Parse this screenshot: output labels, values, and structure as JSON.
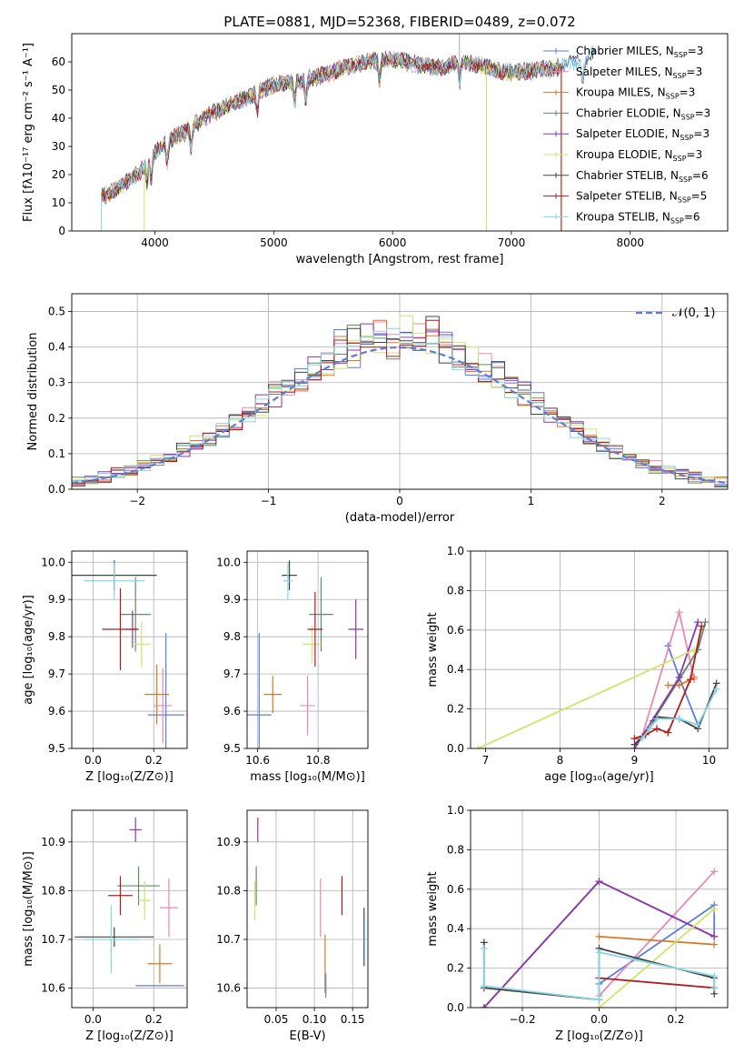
{
  "title": "PLATE=0881, MJD=52368, FIBERID=0489, z=0.072",
  "colors": {
    "Chabrier MILES": "#5b7fd6",
    "Salpeter MILES": "#e889b3",
    "Kroupa MILES": "#d9772b",
    "Chabrier ELODIE": "#5e8c64",
    "Salpeter ELODIE": "#8e35b0",
    "Kroupa ELODIE": "#cfe46a",
    "Chabrier STELIB": "#444444",
    "Salpeter STELIB": "#b01c1c",
    "Kroupa STELIB": "#86d6e6"
  },
  "chart_data": [
    {
      "id": "spectrum",
      "type": "line",
      "xlabel": "wavelength [Angstrom, rest frame]",
      "ylabel": "Flux [fλ10⁻¹⁷ erg cm⁻² s⁻¹ A⁻¹]",
      "xlim": [
        3300,
        8820
      ],
      "ylim": [
        0,
        70
      ],
      "xticks": [
        "4000",
        "5000",
        "6000",
        "7000",
        "8000"
      ],
      "xtick_values": [
        4000,
        5000,
        6000,
        7000,
        8000
      ],
      "yticks": [
        "0",
        "10",
        "20",
        "30",
        "40",
        "50",
        "60"
      ],
      "ytick_values": [
        0,
        10,
        20,
        30,
        40,
        50,
        60
      ],
      "legend_position": "right",
      "legend": [
        {
          "name": "Chabrier MILES",
          "nssp": "3"
        },
        {
          "name": "Salpeter MILES",
          "nssp": "3"
        },
        {
          "name": "Kroupa MILES",
          "nssp": "3"
        },
        {
          "name": "Chabrier ELODIE",
          "nssp": "3"
        },
        {
          "name": "Salpeter ELODIE",
          "nssp": "3"
        },
        {
          "name": "Kroupa ELODIE",
          "nssp": "3"
        },
        {
          "name": "Chabrier STELIB",
          "nssp": "6"
        },
        {
          "name": "Salpeter STELIB",
          "nssp": "5"
        },
        {
          "name": "Kroupa STELIB",
          "nssp": "6"
        }
      ],
      "continuum": [
        [
          3550,
          12
        ],
        [
          3650,
          14
        ],
        [
          3750,
          17
        ],
        [
          3850,
          20
        ],
        [
          3950,
          25
        ],
        [
          4050,
          30
        ],
        [
          4150,
          33
        ],
        [
          4250,
          35
        ],
        [
          4400,
          40
        ],
        [
          4550,
          43
        ],
        [
          4700,
          46
        ],
        [
          4850,
          49
        ],
        [
          5000,
          52
        ],
        [
          5200,
          53
        ],
        [
          5400,
          55
        ],
        [
          5600,
          58
        ],
        [
          5800,
          60
        ],
        [
          6000,
          61
        ],
        [
          6200,
          59
        ],
        [
          6400,
          58
        ],
        [
          6600,
          60
        ],
        [
          6800,
          58
        ],
        [
          7000,
          56
        ],
        [
          7200,
          57
        ],
        [
          7400,
          58
        ],
        [
          7600,
          61
        ],
        [
          7700,
          63
        ]
      ],
      "absorption_lines": [
        3934,
        3969,
        4102,
        4304,
        4861,
        5175,
        5270,
        5890,
        6563,
        7600
      ]
    },
    {
      "id": "residuals",
      "type": "histogram",
      "xlabel": "(data-model)/error",
      "ylabel": "Normed distribution",
      "xlim": [
        -2.5,
        2.5
      ],
      "ylim": [
        0,
        0.55
      ],
      "xticks": [
        "−2",
        "−1",
        "0",
        "1",
        "2"
      ],
      "xtick_values": [
        -2,
        -1,
        0,
        1,
        2
      ],
      "yticks": [
        "0.0",
        "0.1",
        "0.2",
        "0.3",
        "0.4",
        "0.5"
      ],
      "ytick_values": [
        0,
        0.1,
        0.2,
        0.3,
        0.4,
        0.5
      ],
      "reference_label": "𝒩(0, 1)",
      "bin_width": 0.1
    },
    {
      "id": "age-vs-Z",
      "type": "scatter",
      "xlabel": "Z [log₁₀(Z/Z⊙)]",
      "ylabel": "age  [log₁₀(age/yr)]",
      "xlim": [
        -0.07,
        0.31
      ],
      "ylim": [
        9.5,
        10.03
      ],
      "xticks": [
        "0.0",
        "0.2"
      ],
      "xtick_values": [
        0.0,
        0.2
      ],
      "yticks": [
        "9.5",
        "9.6",
        "9.7",
        "9.8",
        "9.9",
        "10.0"
      ],
      "ytick_values": [
        9.5,
        9.6,
        9.7,
        9.8,
        9.9,
        10.0
      ],
      "points": [
        {
          "series": "Chabrier MILES",
          "x": 0.24,
          "xerr": 0.06,
          "y": 9.59,
          "yerr": 0.22
        },
        {
          "series": "Salpeter MILES",
          "x": 0.23,
          "xerr": 0.03,
          "y": 9.615,
          "yerr": 0.1
        },
        {
          "series": "Kroupa MILES",
          "x": 0.21,
          "xerr": 0.04,
          "y": 9.645,
          "yerr": 0.08
        },
        {
          "series": "Chabrier ELODIE",
          "x": 0.14,
          "xerr": 0.05,
          "y": 9.86,
          "yerr": 0.1
        },
        {
          "series": "Salpeter ELODIE",
          "x": 0.13,
          "xerr": 0.02,
          "y": 9.82,
          "yerr": 0.05
        },
        {
          "series": "Kroupa ELODIE",
          "x": 0.16,
          "xerr": 0.03,
          "y": 9.78,
          "yerr": 0.06
        },
        {
          "series": "Chabrier STELIB",
          "x": 0.07,
          "xerr": 0.14,
          "y": 9.965,
          "yerr": 0.04
        },
        {
          "series": "Salpeter STELIB",
          "x": 0.09,
          "xerr": 0.06,
          "y": 9.82,
          "yerr": 0.11
        },
        {
          "series": "Kroupa STELIB",
          "x": 0.07,
          "xerr": 0.1,
          "y": 9.95,
          "yerr": 0.05
        }
      ]
    },
    {
      "id": "age-vs-mass",
      "type": "scatter",
      "xlabel": "mass [log₁₀(M/M⊙)]",
      "ylabel": "",
      "xlim": [
        10.565,
        10.965
      ],
      "ylim": [
        9.5,
        10.03
      ],
      "xticks": [
        "10.6",
        "10.8"
      ],
      "xtick_values": [
        10.6,
        10.8
      ],
      "yticks": [
        "9.5",
        "9.6",
        "9.7",
        "9.8",
        "9.9",
        "10.0"
      ],
      "ytick_values": [
        9.5,
        9.6,
        9.7,
        9.8,
        9.9,
        10.0
      ],
      "points": [
        {
          "series": "Chabrier MILES",
          "x": 10.605,
          "xerr": 0.04,
          "y": 9.59,
          "yerr": 0.22
        },
        {
          "series": "Salpeter MILES",
          "x": 10.765,
          "xerr": 0.025,
          "y": 9.615,
          "yerr": 0.08
        },
        {
          "series": "Kroupa MILES",
          "x": 10.65,
          "xerr": 0.03,
          "y": 9.645,
          "yerr": 0.05
        },
        {
          "series": "Chabrier ELODIE",
          "x": 10.81,
          "xerr": 0.04,
          "y": 9.86,
          "yerr": 0.1
        },
        {
          "series": "Salpeter ELODIE",
          "x": 10.925,
          "xerr": 0.025,
          "y": 9.82,
          "yerr": 0.08
        },
        {
          "series": "Kroupa ELODIE",
          "x": 10.78,
          "xerr": 0.03,
          "y": 9.78,
          "yerr": 0.05
        },
        {
          "series": "Chabrier STELIB",
          "x": 10.705,
          "xerr": 0.025,
          "y": 9.965,
          "yerr": 0.04
        },
        {
          "series": "Salpeter STELIB",
          "x": 10.79,
          "xerr": 0.025,
          "y": 9.82,
          "yerr": 0.1
        },
        {
          "series": "Kroupa STELIB",
          "x": 10.7,
          "xerr": 0.015,
          "y": 9.95,
          "yerr": 0.05
        }
      ]
    },
    {
      "id": "weight-vs-age",
      "type": "line",
      "xlabel": "age  [log₁₀(age/yr)]",
      "ylabel": "mass weight",
      "xlim": [
        6.8,
        10.25
      ],
      "ylim": [
        0,
        1
      ],
      "xticks": [
        "7",
        "8",
        "9",
        "10"
      ],
      "xtick_values": [
        7,
        8,
        9,
        10
      ],
      "yticks": [
        "0.0",
        "0.2",
        "0.4",
        "0.6",
        "0.8",
        "1.0"
      ],
      "ytick_values": [
        0,
        0.2,
        0.4,
        0.6,
        0.8,
        1.0
      ],
      "series": [
        {
          "series": "Chabrier MILES",
          "points": [
            [
              9.45,
              0.52
            ],
            [
              9.6,
              0.36
            ],
            [
              9.85,
              0.12
            ]
          ]
        },
        {
          "series": "Salpeter MILES",
          "points": [
            [
              9.1,
              0.06
            ],
            [
              9.6,
              0.69
            ],
            [
              9.8,
              0.35
            ]
          ]
        },
        {
          "series": "Kroupa MILES",
          "points": [
            [
              9.45,
              0.32
            ],
            [
              9.6,
              0.32
            ],
            [
              9.8,
              0.36
            ]
          ]
        },
        {
          "series": "Chabrier ELODIE",
          "points": [
            [
              9.25,
              0.14
            ],
            [
              9.85,
              0.5
            ],
            [
              9.95,
              0.64
            ]
          ]
        },
        {
          "series": "Salpeter ELODIE",
          "points": [
            [
              9.0,
              0.0
            ],
            [
              9.6,
              0.36
            ],
            [
              9.85,
              0.64
            ]
          ]
        },
        {
          "series": "Kroupa ELODIE",
          "points": [
            [
              6.9,
              0.0
            ],
            [
              9.8,
              0.5
            ]
          ]
        },
        {
          "series": "Chabrier STELIB",
          "points": [
            [
              9.0,
              0.02
            ],
            [
              9.2,
              0.1
            ],
            [
              9.3,
              0.16
            ],
            [
              9.6,
              0.15
            ],
            [
              9.85,
              0.1
            ],
            [
              10.1,
              0.33
            ]
          ]
        },
        {
          "series": "Salpeter STELIB",
          "points": [
            [
              9.0,
              0.05
            ],
            [
              9.15,
              0.07
            ],
            [
              9.3,
              0.1
            ],
            [
              9.45,
              0.08
            ],
            [
              9.75,
              0.35
            ],
            [
              9.9,
              0.62
            ]
          ]
        },
        {
          "series": "Kroupa STELIB",
          "points": [
            [
              9.1,
              0.05
            ],
            [
              9.2,
              0.1
            ],
            [
              9.3,
              0.15
            ],
            [
              9.6,
              0.15
            ],
            [
              9.85,
              0.12
            ],
            [
              10.1,
              0.3
            ]
          ]
        }
      ]
    },
    {
      "id": "mass-vs-Z",
      "type": "scatter",
      "xlabel": "Z [log₁₀(Z/Z⊙)]",
      "ylabel": "mass [log₁₀(M/M⊙)]",
      "xlim": [
        -0.07,
        0.31
      ],
      "ylim": [
        10.56,
        10.965
      ],
      "xticks": [
        "0.0",
        "0.2"
      ],
      "xtick_values": [
        0.0,
        0.2
      ],
      "yticks": [
        "10.6",
        "10.7",
        "10.8",
        "10.9"
      ],
      "ytick_values": [
        10.6,
        10.7,
        10.8,
        10.9
      ],
      "points": [
        {
          "series": "Chabrier MILES",
          "x": 0.22,
          "xerr": 0.08,
          "y": 10.605,
          "yerr": 0.0
        },
        {
          "series": "Salpeter MILES",
          "x": 0.25,
          "xerr": 0.03,
          "y": 10.765,
          "yerr": 0.06
        },
        {
          "series": "Kroupa MILES",
          "x": 0.22,
          "xerr": 0.04,
          "y": 10.65,
          "yerr": 0.04
        },
        {
          "series": "Chabrier ELODIE",
          "x": 0.15,
          "xerr": 0.07,
          "y": 10.81,
          "yerr": 0.04
        },
        {
          "series": "Salpeter ELODIE",
          "x": 0.14,
          "xerr": 0.02,
          "y": 10.925,
          "yerr": 0.025
        },
        {
          "series": "Kroupa ELODIE",
          "x": 0.17,
          "xerr": 0.02,
          "y": 10.78,
          "yerr": 0.04
        },
        {
          "series": "Chabrier STELIB",
          "x": 0.07,
          "xerr": 0.13,
          "y": 10.705,
          "yerr": 0.02
        },
        {
          "series": "Salpeter STELIB",
          "x": 0.09,
          "xerr": 0.04,
          "y": 10.79,
          "yerr": 0.04
        },
        {
          "series": "Kroupa STELIB",
          "x": 0.06,
          "xerr": 0.09,
          "y": 10.7,
          "yerr": 0.07
        }
      ]
    },
    {
      "id": "mass-vs-EBV",
      "type": "scatter",
      "xlabel": "E(B-V)",
      "ylabel": "",
      "xlim": [
        0.012,
        0.17
      ],
      "ylim": [
        10.56,
        10.965
      ],
      "xticks": [
        "0.05",
        "0.10",
        "0.15"
      ],
      "xtick_values": [
        0.05,
        0.1,
        0.15
      ],
      "yticks": [
        "10.6",
        "10.7",
        "10.8",
        "10.9"
      ],
      "ytick_values": [
        10.6,
        10.7,
        10.8,
        10.9
      ],
      "points": [
        {
          "series": "Chabrier MILES",
          "x": 0.115,
          "xerr": 0.0,
          "y": 10.605,
          "yerr": 0.025
        },
        {
          "series": "Salpeter MILES",
          "x": 0.108,
          "xerr": 0.0,
          "y": 10.765,
          "yerr": 0.06
        },
        {
          "series": "Kroupa MILES",
          "x": 0.114,
          "xerr": 0.0,
          "y": 10.65,
          "yerr": 0.06
        },
        {
          "series": "Chabrier ELODIE",
          "x": 0.024,
          "xerr": 0.0,
          "y": 10.81,
          "yerr": 0.04
        },
        {
          "series": "Salpeter ELODIE",
          "x": 0.026,
          "xerr": 0.0,
          "y": 10.925,
          "yerr": 0.025
        },
        {
          "series": "Kroupa ELODIE",
          "x": 0.022,
          "xerr": 0.0,
          "y": 10.78,
          "yerr": 0.04
        },
        {
          "series": "Chabrier STELIB",
          "x": 0.165,
          "xerr": 0.0,
          "y": 10.705,
          "yerr": 0.06
        },
        {
          "series": "Salpeter STELIB",
          "x": 0.136,
          "xerr": 0.0,
          "y": 10.79,
          "yerr": 0.04
        },
        {
          "series": "Kroupa STELIB",
          "x": 0.166,
          "xerr": 0.0,
          "y": 10.7,
          "yerr": 0.04
        }
      ]
    },
    {
      "id": "weight-vs-Z",
      "type": "line",
      "xlabel": "Z [log₁₀(Z/Z⊙)]",
      "ylabel": "mass weight",
      "xlim": [
        -0.335,
        0.335
      ],
      "ylim": [
        0,
        1
      ],
      "xticks": [
        "−0.2",
        "0.0",
        "0.2"
      ],
      "xtick_values": [
        -0.2,
        0.0,
        0.2
      ],
      "yticks": [
        "0.0",
        "0.2",
        "0.4",
        "0.6",
        "0.8",
        "1.0"
      ],
      "ytick_values": [
        0,
        0.2,
        0.4,
        0.6,
        0.8,
        1.0
      ],
      "series": [
        {
          "series": "Chabrier MILES",
          "points": [
            [
              0.0,
              0.12
            ],
            [
              0.3,
              0.52
            ],
            [
              0.3,
              0.36
            ]
          ]
        },
        {
          "series": "Salpeter MILES",
          "points": [
            [
              0.0,
              0.06
            ],
            [
              0.3,
              0.69
            ]
          ]
        },
        {
          "series": "Kroupa MILES",
          "points": [
            [
              0.0,
              0.36
            ],
            [
              0.3,
              0.32
            ]
          ]
        },
        {
          "series": "Chabrier ELODIE",
          "points": [
            [
              -0.3,
              0.0
            ],
            [
              0.0,
              0.64
            ],
            [
              0.3,
              0.36
            ]
          ]
        },
        {
          "series": "Salpeter ELODIE",
          "points": [
            [
              -0.3,
              0.0
            ],
            [
              0.0,
              0.64
            ],
            [
              0.3,
              0.36
            ]
          ]
        },
        {
          "series": "Kroupa ELODIE",
          "points": [
            [
              0.0,
              0.0
            ],
            [
              0.3,
              0.5
            ]
          ]
        },
        {
          "series": "Chabrier STELIB",
          "points": [
            [
              -0.3,
              0.33
            ],
            [
              -0.3,
              0.1
            ],
            [
              0.0,
              0.04
            ],
            [
              0.0,
              0.3
            ],
            [
              0.3,
              0.15
            ],
            [
              0.3,
              0.07
            ]
          ]
        },
        {
          "series": "Salpeter STELIB",
          "points": [
            [
              0.0,
              0.15
            ],
            [
              0.3,
              0.1
            ]
          ]
        },
        {
          "series": "Kroupa STELIB",
          "points": [
            [
              -0.3,
              0.3
            ],
            [
              -0.3,
              0.11
            ],
            [
              0.0,
              0.04
            ],
            [
              0.0,
              0.28
            ],
            [
              0.3,
              0.16
            ],
            [
              0.3,
              0.1
            ]
          ]
        }
      ]
    }
  ]
}
